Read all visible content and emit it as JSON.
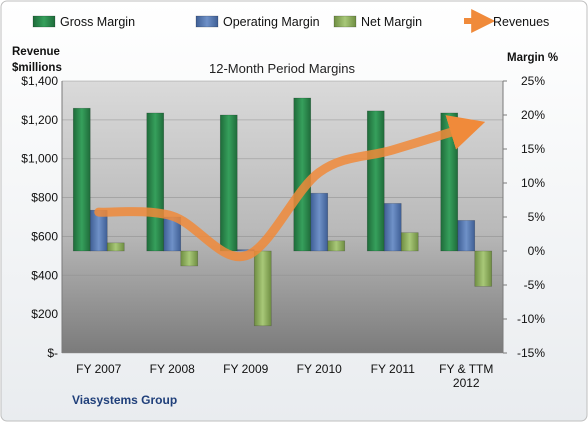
{
  "chart_data": {
    "type": "bar",
    "title": "12-Month Period Margins",
    "company": "Viasystems Group",
    "y_left_label_line1": "Revenue",
    "y_left_label_line2": "$millions",
    "y_right_label": "Margin %",
    "categories": [
      "FY 2007",
      "FY 2008",
      "FY 2009",
      "FY 2010",
      "FY 2011",
      "FY & TTM 2012"
    ],
    "category_lines": [
      [
        "FY 2007"
      ],
      [
        "FY 2008"
      ],
      [
        "FY 2009"
      ],
      [
        "FY 2010"
      ],
      [
        "FY 2011"
      ],
      [
        "FY & TTM",
        "2012"
      ]
    ],
    "y_left": {
      "min": 0,
      "max": 1400,
      "ticks": [
        0,
        200,
        400,
        600,
        800,
        1000,
        1200,
        1400
      ],
      "tick_labels": [
        "$-",
        "$200",
        "$400",
        "$600",
        "$800",
        "$1,000",
        "$1,200",
        "$1,400"
      ]
    },
    "y_right": {
      "min": -15,
      "max": 25,
      "ticks": [
        -15,
        -10,
        -5,
        0,
        5,
        10,
        15,
        20,
        25
      ],
      "tick_labels": [
        "-15%",
        "-10%",
        "-5%",
        "0%",
        "5%",
        "10%",
        "15%",
        "20%",
        "25%"
      ]
    },
    "series": [
      {
        "name": "Gross Margin",
        "axis": "right",
        "kind": "bar",
        "color": "#2e8b4f",
        "values": [
          21,
          20.3,
          20,
          22.5,
          20.6,
          20.3
        ]
      },
      {
        "name": "Operating Margin",
        "axis": "right",
        "kind": "bar",
        "color": "#5b7fba",
        "values": [
          6,
          5,
          0.2,
          8.5,
          7,
          4.5
        ]
      },
      {
        "name": "Net Margin",
        "axis": "right",
        "kind": "bar",
        "color": "#93b661",
        "values": [
          1.2,
          -2.2,
          -11,
          1.5,
          2.7,
          -5.2
        ]
      },
      {
        "name": "Revenues",
        "axis": "left",
        "kind": "line",
        "color": "#f08a3a",
        "values": [
          725,
          705,
          500,
          930,
          1045,
          1160
        ]
      }
    ],
    "legend_position": "top",
    "colors": {
      "plot_top": "#d8d8d8",
      "plot_bottom": "#7f7f7f",
      "frame": "#bfbfbf"
    }
  }
}
